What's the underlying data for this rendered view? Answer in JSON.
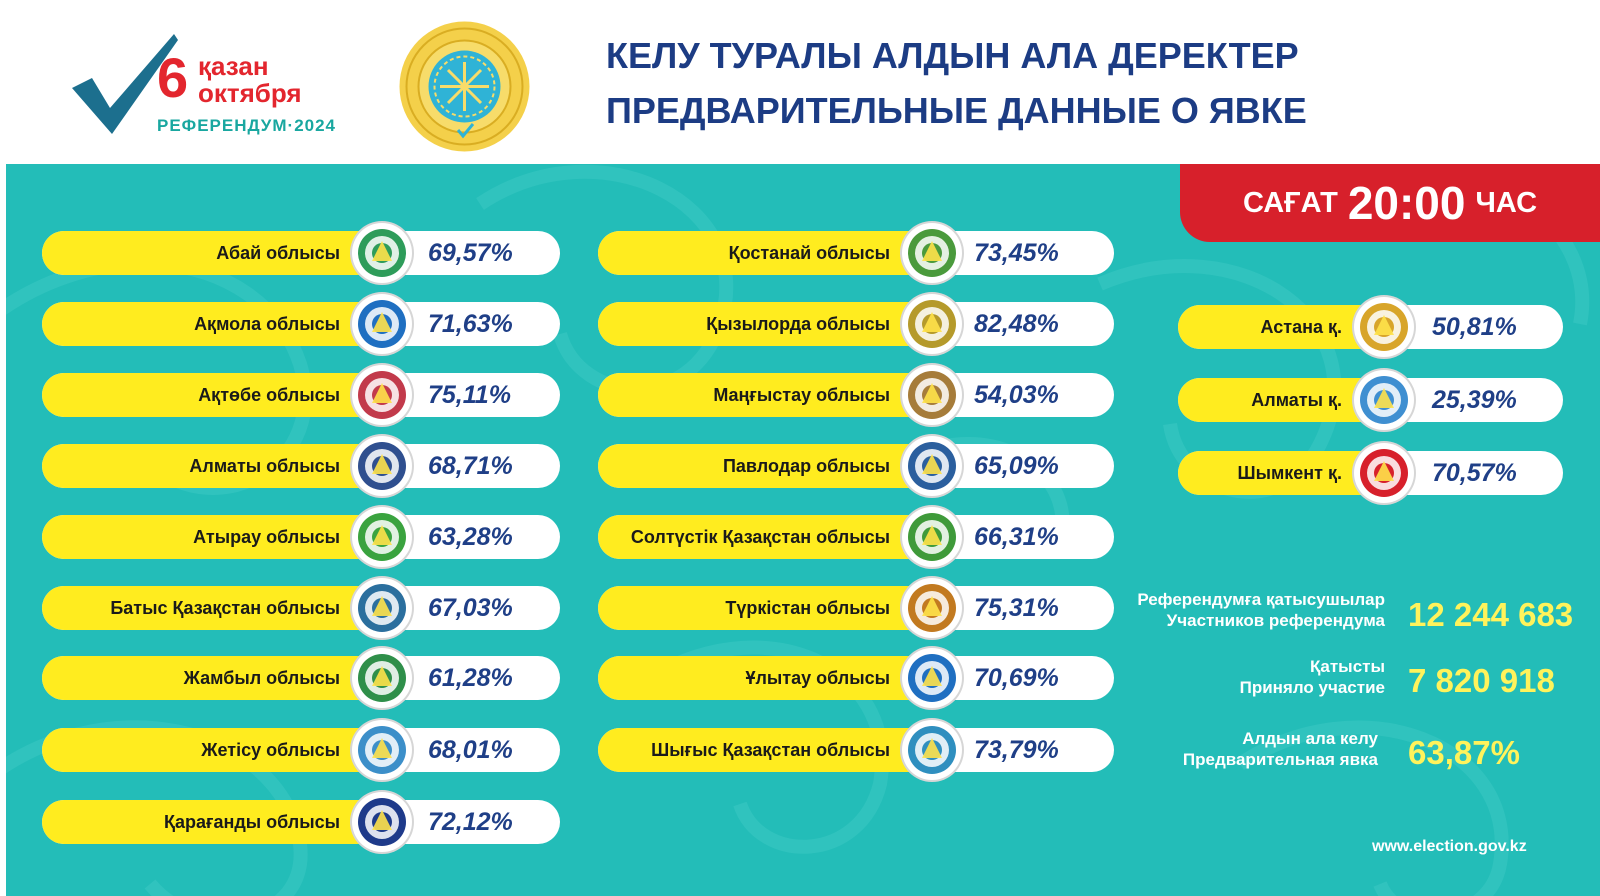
{
  "header": {
    "logo": {
      "day": "6",
      "month_kz": "қазан",
      "month_ru": "октября",
      "subtitle": "РЕФЕРЕНДУМ·2024"
    },
    "title_kz": "КЕЛУ ТУРАЛЫ АЛДЫН АЛА ДЕРЕКТЕР",
    "title_ru": "ПРЕДВАРИТЕЛЬНЫЕ ДАННЫЕ О ЯВКЕ",
    "emblem_icon": "election-commission-emblem-icon"
  },
  "time_badge": {
    "label_kz": "САҒАТ",
    "time": "20:00",
    "label_ru": "ЧАС"
  },
  "regions_col1": [
    {
      "name": "Абай облысы",
      "value": "69,57%",
      "icon": "abai-region-logo-icon",
      "color": "#2e9c5a"
    },
    {
      "name": "Ақмола облысы",
      "value": "71,63%",
      "icon": "aqmola-region-logo-icon",
      "color": "#1f6fc1"
    },
    {
      "name": "Ақтөбе облысы",
      "value": "75,11%",
      "icon": "aktobe-region-logo-icon",
      "color": "#c23a4b"
    },
    {
      "name": "Алматы облысы",
      "value": "68,71%",
      "icon": "almaty-region-logo-icon",
      "color": "#2f4f8f"
    },
    {
      "name": "Атырау облысы",
      "value": "63,28%",
      "icon": "atyrau-region-logo-icon",
      "color": "#3aa33f"
    },
    {
      "name": "Батыс Қазақстан облысы",
      "value": "67,03%",
      "icon": "west-kazakhstan-region-logo-icon",
      "color": "#2b6f9e"
    },
    {
      "name": "Жамбыл облысы",
      "value": "61,28%",
      "icon": "zhambyl-region-logo-icon",
      "color": "#2f8f4a"
    },
    {
      "name": "Жетісу облысы",
      "value": "68,01%",
      "icon": "zhetisu-region-logo-icon",
      "color": "#3c8fc9"
    },
    {
      "name": "Қарағанды облысы",
      "value": "72,12%",
      "icon": "karaganda-region-logo-icon",
      "color": "#1e3a8a"
    }
  ],
  "regions_col2": [
    {
      "name": "Қостанай облысы",
      "value": "73,45%",
      "icon": "kostanay-region-logo-icon",
      "color": "#4a9a3c"
    },
    {
      "name": "Қызылорда облысы",
      "value": "82,48%",
      "icon": "kyzylorda-region-logo-icon",
      "color": "#b59a2b"
    },
    {
      "name": "Маңғыстау облысы",
      "value": "54,03%",
      "icon": "mangystau-region-logo-icon",
      "color": "#a67c3a"
    },
    {
      "name": "Павлодар облысы",
      "value": "65,09%",
      "icon": "pavlodar-region-logo-icon",
      "color": "#2b5f9e"
    },
    {
      "name": "Солтүстік Қазақстан облысы",
      "value": "66,31%",
      "icon": "north-kazakhstan-region-logo-icon",
      "color": "#3f9a3a"
    },
    {
      "name": "Түркістан облысы",
      "value": "75,31%",
      "icon": "turkistan-region-logo-icon",
      "color": "#c27a20"
    },
    {
      "name": "Ұлытау облысы",
      "value": "70,69%",
      "icon": "ulytau-region-logo-icon",
      "color": "#1f6fc1"
    },
    {
      "name": "Шығыс Қазақстан облысы",
      "value": "73,79%",
      "icon": "east-kazakhstan-region-logo-icon",
      "color": "#2f8fbf"
    }
  ],
  "cities": [
    {
      "name": "Астана қ.",
      "value": "50,81%",
      "icon": "astana-city-emblem-icon",
      "color": "#d8a52a"
    },
    {
      "name": "Алматы қ.",
      "value": "25,39%",
      "icon": "almaty-city-emblem-icon",
      "color": "#3f8fd1"
    },
    {
      "name": "Шымкент қ.",
      "value": "70,57%",
      "icon": "shymkent-city-logo-icon",
      "color": "#d7202b"
    }
  ],
  "stats": {
    "participants": {
      "label_kz": "Референдумға қатысушылар",
      "label_ru": "Участников референдума",
      "value": "12 244 683"
    },
    "took_part": {
      "label_kz": "Қатысты",
      "label_ru": "Приняло участие",
      "value": "7 820 918"
    },
    "turnout": {
      "label_kz": "Алдын ала келу",
      "label_ru": "Предварительная явка",
      "value": "63,87%"
    }
  },
  "footer": {
    "url": "www.election.gov.kz"
  },
  "colors": {
    "teal": "#23bdb8",
    "yellow": "#ffec1f",
    "red": "#d7202b",
    "navy": "#1c3c84",
    "stat_yellow": "#fff35b"
  }
}
